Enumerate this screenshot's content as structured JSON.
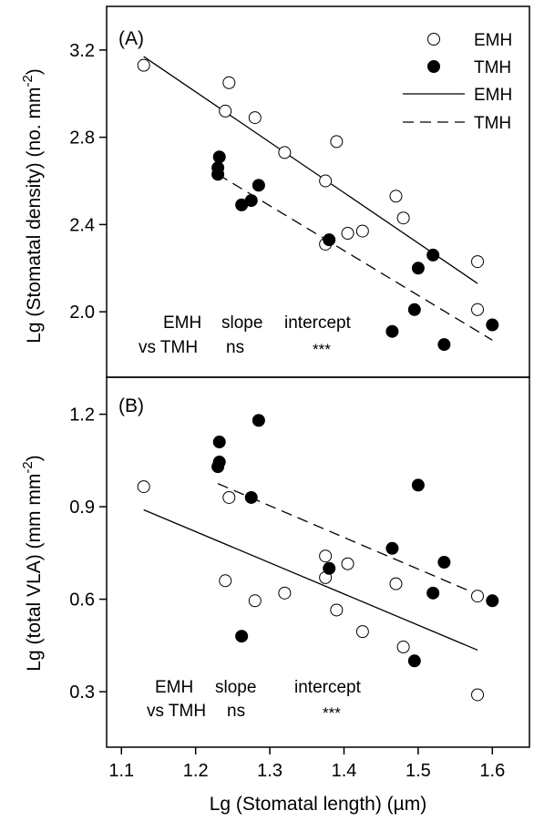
{
  "figure": {
    "xlabel": "Lg (Stomatal length) (µm)",
    "xticks": [
      "1.1",
      "1.2",
      "1.3",
      "1.4",
      "1.5",
      "1.6"
    ],
    "xlim": [
      1.08,
      1.65
    ]
  },
  "chart_data": [
    {
      "type": "scatter",
      "panel_label": "(A)",
      "ylabel_main": "Lg (Stomatal density) (no. mm",
      "ylabel_sup": "-2",
      "ylabel_close": ")",
      "ylim": [
        1.7,
        3.4
      ],
      "yticks": [
        "2.0",
        "2.4",
        "2.8",
        "3.2"
      ],
      "ytick_values": [
        2.0,
        2.4,
        2.8,
        3.2
      ],
      "legend": {
        "position": "top-right",
        "entries": [
          {
            "label": "EMH",
            "marker": "open-circle"
          },
          {
            "label": "TMH",
            "marker": "filled-circle"
          },
          {
            "label": "EMH",
            "line": "solid"
          },
          {
            "label": "TMH",
            "line": "dashed"
          }
        ]
      },
      "series": [
        {
          "name": "EMH",
          "marker": "open",
          "points": [
            [
              1.13,
              3.13
            ],
            [
              1.24,
              2.92
            ],
            [
              1.245,
              3.05
            ],
            [
              1.28,
              2.89
            ],
            [
              1.32,
              2.73
            ],
            [
              1.375,
              2.6
            ],
            [
              1.375,
              2.31
            ],
            [
              1.39,
              2.78
            ],
            [
              1.405,
              2.36
            ],
            [
              1.425,
              2.37
            ],
            [
              1.47,
              2.53
            ],
            [
              1.48,
              2.43
            ],
            [
              1.58,
              2.23
            ],
            [
              1.58,
              2.01
            ]
          ],
          "fit": [
            [
              1.13,
              3.17
            ],
            [
              1.58,
              2.13
            ]
          ]
        },
        {
          "name": "TMH",
          "marker": "filled",
          "points": [
            [
              1.23,
              2.66
            ],
            [
              1.23,
              2.63
            ],
            [
              1.232,
              2.71
            ],
            [
              1.262,
              2.49
            ],
            [
              1.275,
              2.51
            ],
            [
              1.285,
              2.58
            ],
            [
              1.38,
              2.33
            ],
            [
              1.465,
              1.91
            ],
            [
              1.495,
              2.01
            ],
            [
              1.5,
              2.2
            ],
            [
              1.52,
              2.26
            ],
            [
              1.535,
              1.85
            ],
            [
              1.6,
              1.94
            ]
          ],
          "fit": [
            [
              1.23,
              2.63
            ],
            [
              1.6,
              1.87
            ]
          ]
        }
      ],
      "annotation": {
        "row1": [
          "EMH",
          "slope",
          "intercept"
        ],
        "row2": [
          "vs TMH",
          "ns",
          "***"
        ]
      }
    },
    {
      "type": "scatter",
      "panel_label": "(B)",
      "ylabel_main": "Lg (total VLA)  (mm mm",
      "ylabel_sup": "-2",
      "ylabel_close": ")",
      "ylim": [
        0.12,
        1.32
      ],
      "yticks": [
        "0.3",
        "0.6",
        "0.9",
        "1.2"
      ],
      "ytick_values": [
        0.3,
        0.6,
        0.9,
        1.2
      ],
      "series": [
        {
          "name": "EMH",
          "marker": "open",
          "points": [
            [
              1.13,
              0.965
            ],
            [
              1.24,
              0.66
            ],
            [
              1.245,
              0.93
            ],
            [
              1.28,
              0.595
            ],
            [
              1.32,
              0.62
            ],
            [
              1.375,
              0.74
            ],
            [
              1.375,
              0.67
            ],
            [
              1.39,
              0.565
            ],
            [
              1.405,
              0.715
            ],
            [
              1.425,
              0.495
            ],
            [
              1.47,
              0.65
            ],
            [
              1.48,
              0.445
            ],
            [
              1.58,
              0.61
            ],
            [
              1.58,
              0.29
            ]
          ],
          "fit": [
            [
              1.13,
              0.89
            ],
            [
              1.58,
              0.435
            ]
          ]
        },
        {
          "name": "TMH",
          "marker": "filled",
          "points": [
            [
              1.23,
              1.03
            ],
            [
              1.232,
              1.045
            ],
            [
              1.232,
              1.11
            ],
            [
              1.262,
              0.48
            ],
            [
              1.275,
              0.93
            ],
            [
              1.285,
              1.18
            ],
            [
              1.38,
              0.7
            ],
            [
              1.465,
              0.765
            ],
            [
              1.495,
              0.4
            ],
            [
              1.5,
              0.97
            ],
            [
              1.52,
              0.62
            ],
            [
              1.535,
              0.72
            ],
            [
              1.6,
              0.595
            ]
          ],
          "fit": [
            [
              1.23,
              0.975
            ],
            [
              1.6,
              0.595
            ]
          ]
        }
      ],
      "annotation": {
        "row1": [
          "EMH",
          "slope",
          "intercept"
        ],
        "row2": [
          "vs TMH",
          "ns",
          "***"
        ]
      }
    }
  ]
}
